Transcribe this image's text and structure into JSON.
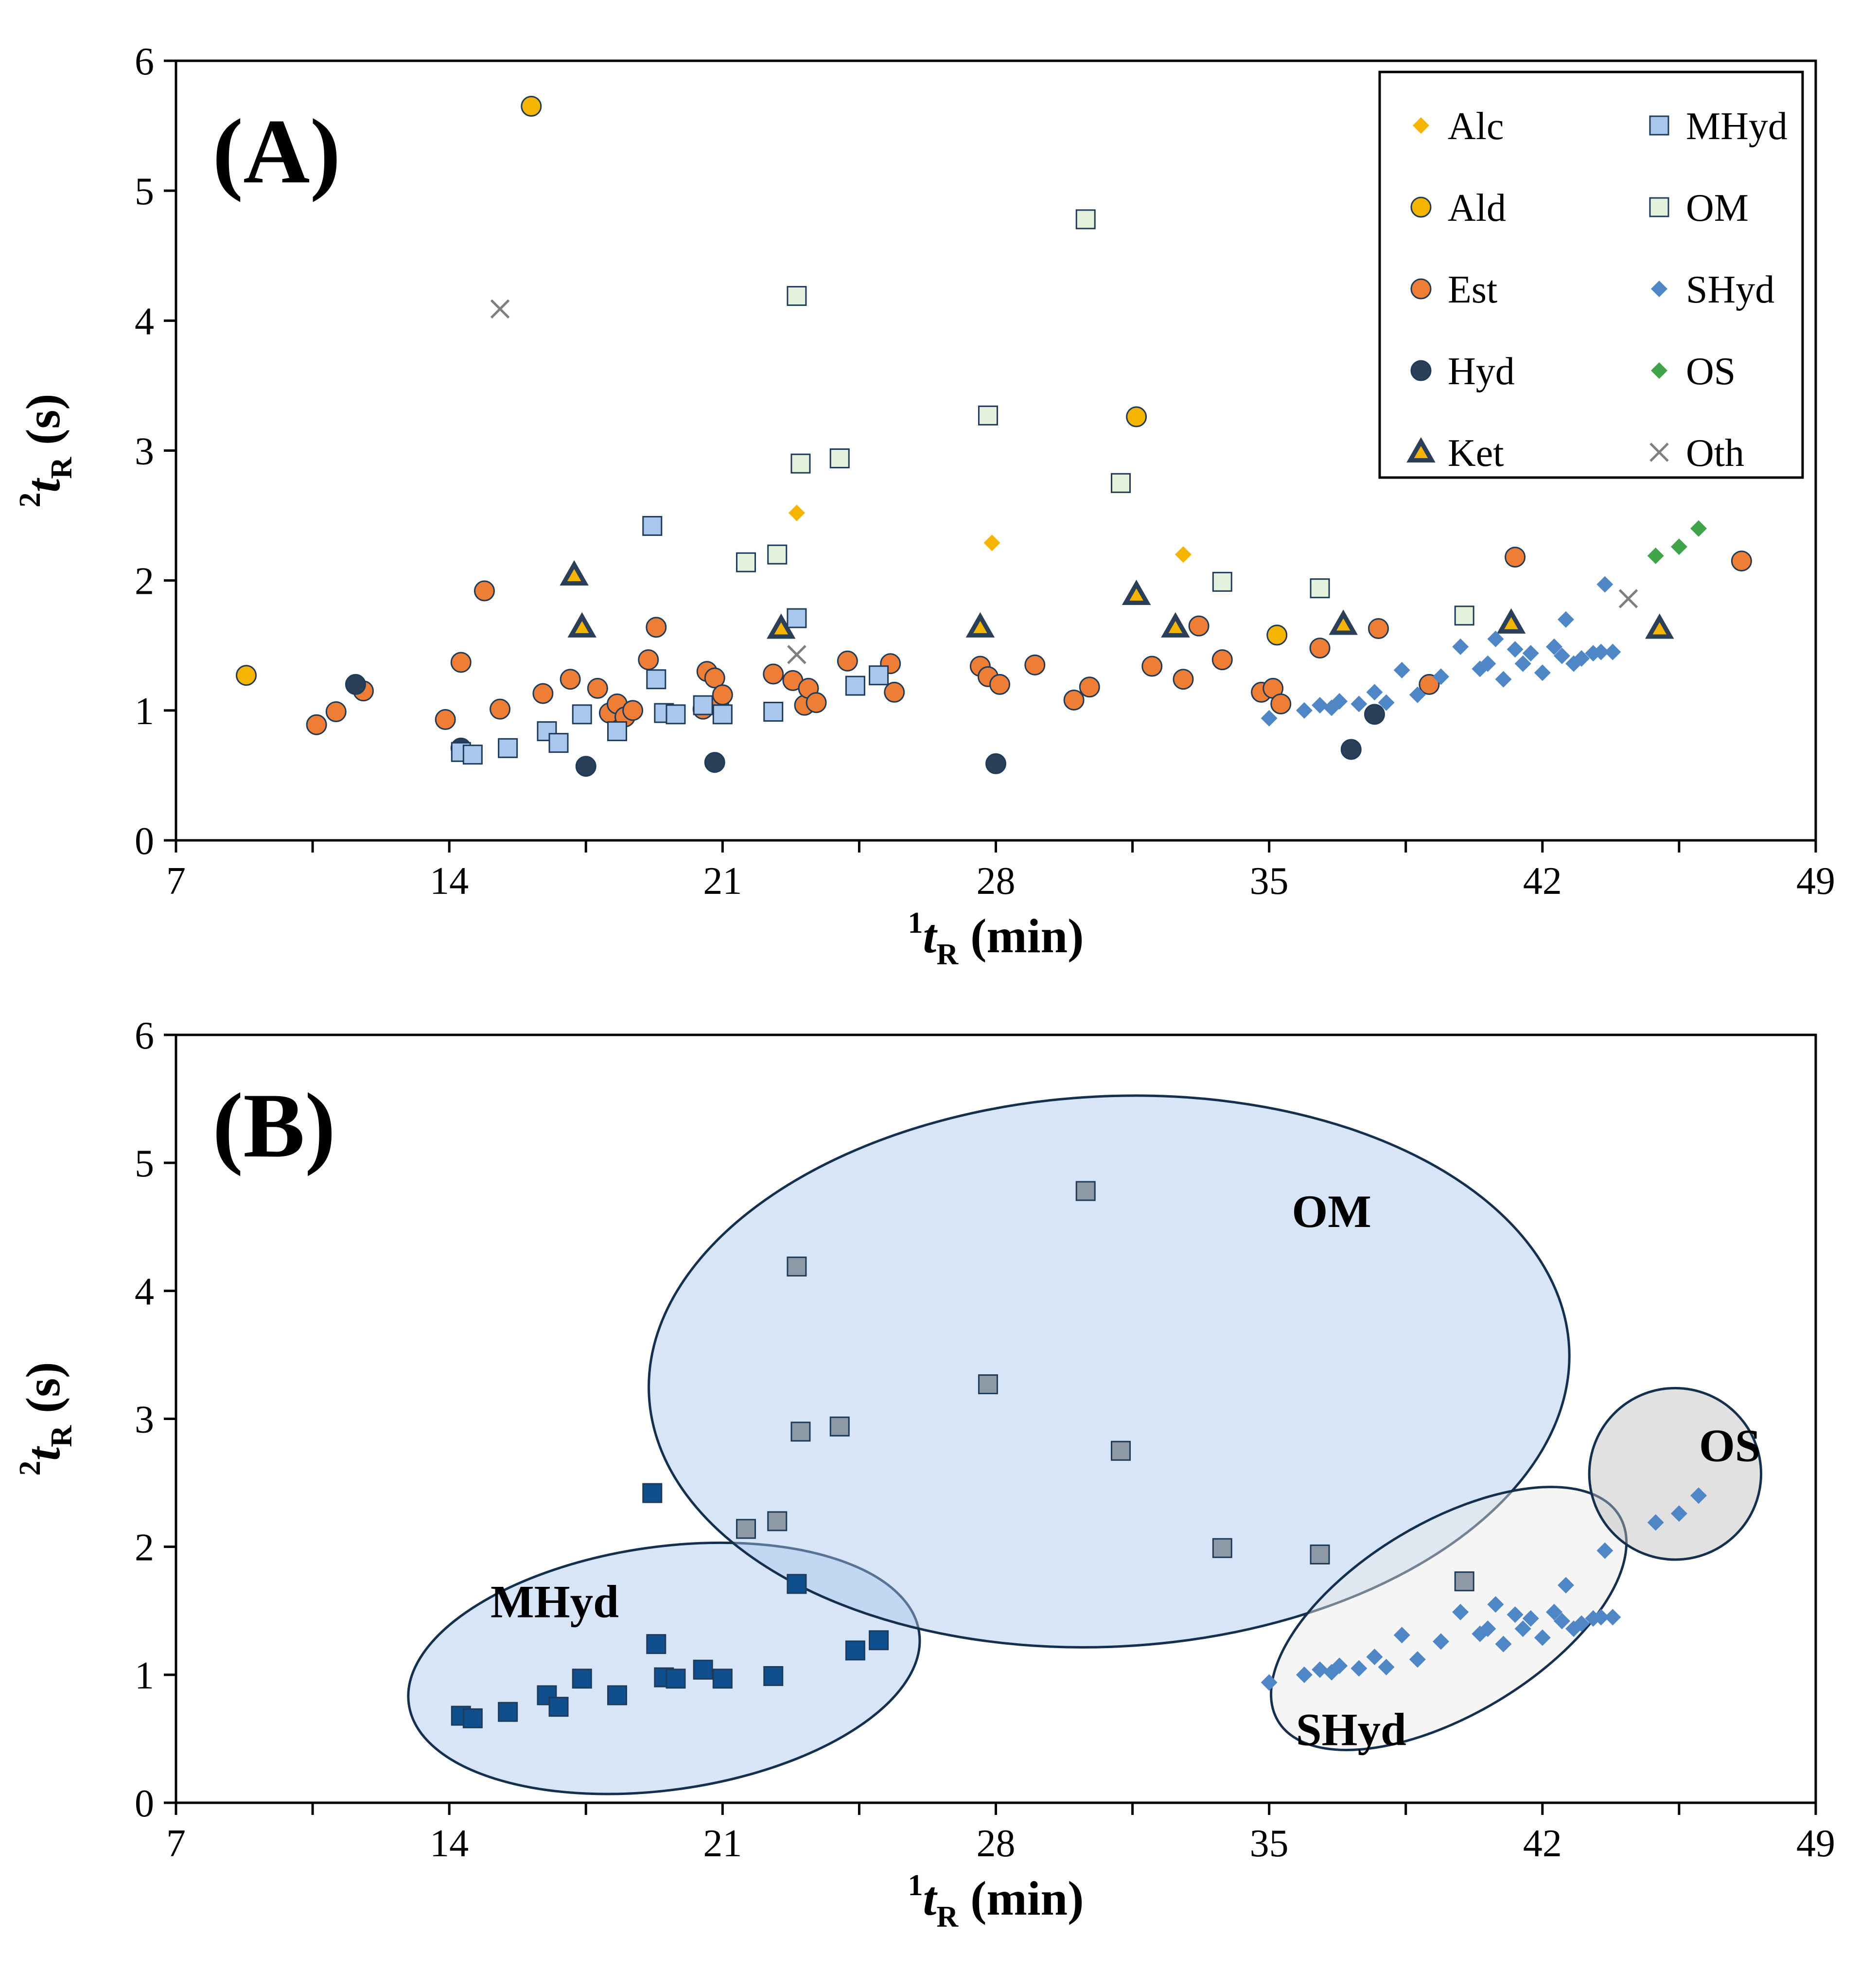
{
  "chart_data": [
    {
      "type": "scatter",
      "panel_label": "(A)",
      "xlabel_sup": "1",
      "xlabel_var": "t",
      "xlabel_sub": "R",
      "xlabel_unit": " (min)",
      "ylabel_sup": "2",
      "ylabel_var": "t",
      "ylabel_sub": "R",
      "ylabel_unit": " (s)",
      "xlim": [
        7,
        49
      ],
      "ylim": [
        0,
        6
      ],
      "xticks": [
        7,
        14,
        21,
        28,
        35,
        42,
        49
      ],
      "yticks": [
        0,
        1,
        2,
        3,
        4,
        5,
        6
      ],
      "grid": false,
      "legend": "top-right",
      "series": [
        {
          "name": "Alc",
          "marker": "diamond",
          "color": "#F5B400",
          "points": [
            [
              22.9,
              2.52
            ],
            [
              27.9,
              2.29
            ],
            [
              32.8,
              2.2
            ]
          ]
        },
        {
          "name": "Ald",
          "marker": "circle",
          "color": "#F5B400",
          "points": [
            [
              8.8,
              1.27
            ],
            [
              16.1,
              5.65
            ],
            [
              31.6,
              3.26
            ],
            [
              35.2,
              1.58
            ]
          ]
        },
        {
          "name": "Est",
          "marker": "circle",
          "color": "#EE7D35",
          "points": [
            [
              10.6,
              0.89
            ],
            [
              11.1,
              0.99
            ],
            [
              11.8,
              1.15
            ],
            [
              13.9,
              0.93
            ],
            [
              14.3,
              1.37
            ],
            [
              14.9,
              1.92
            ],
            [
              15.3,
              1.01
            ],
            [
              16.4,
              1.13
            ],
            [
              17.1,
              1.24
            ],
            [
              17.8,
              1.17
            ],
            [
              18.1,
              0.98
            ],
            [
              18.3,
              1.05
            ],
            [
              18.5,
              0.95
            ],
            [
              18.7,
              1.0
            ],
            [
              19.1,
              1.39
            ],
            [
              19.3,
              1.64
            ],
            [
              20.5,
              1.01
            ],
            [
              20.6,
              1.3
            ],
            [
              20.8,
              1.25
            ],
            [
              20.9,
              1.05
            ],
            [
              21.0,
              1.12
            ],
            [
              22.3,
              1.28
            ],
            [
              22.8,
              1.23
            ],
            [
              23.1,
              1.04
            ],
            [
              23.2,
              1.17
            ],
            [
              23.4,
              1.06
            ],
            [
              24.2,
              1.38
            ],
            [
              25.3,
              1.36
            ],
            [
              25.4,
              1.14
            ],
            [
              27.6,
              1.34
            ],
            [
              27.8,
              1.26
            ],
            [
              28.1,
              1.2
            ],
            [
              29.0,
              1.35
            ],
            [
              30.0,
              1.08
            ],
            [
              30.4,
              1.18
            ],
            [
              32.0,
              1.34
            ],
            [
              32.8,
              1.24
            ],
            [
              33.2,
              1.65
            ],
            [
              33.8,
              1.39
            ],
            [
              34.8,
              1.14
            ],
            [
              35.1,
              1.17
            ],
            [
              35.3,
              1.05
            ],
            [
              36.3,
              1.48
            ],
            [
              37.8,
              1.63
            ],
            [
              39.1,
              1.2
            ],
            [
              41.3,
              2.18
            ],
            [
              47.1,
              2.15
            ]
          ]
        },
        {
          "name": "Hyd",
          "marker": "circle",
          "color": "#2B3F58",
          "points": [
            [
              11.6,
              1.2
            ],
            [
              14.3,
              0.71
            ],
            [
              17.5,
              0.57
            ],
            [
              20.8,
              0.6
            ],
            [
              28.0,
              0.59
            ],
            [
              37.1,
              0.7
            ],
            [
              37.7,
              0.97
            ]
          ]
        },
        {
          "name": "Ket",
          "marker": "triangle",
          "color": "#F5B400",
          "points": [
            [
              17.2,
              2.04
            ],
            [
              17.4,
              1.64
            ],
            [
              22.5,
              1.63
            ],
            [
              27.6,
              1.64
            ],
            [
              31.6,
              1.89
            ],
            [
              32.6,
              1.64
            ],
            [
              36.9,
              1.66
            ],
            [
              41.2,
              1.67
            ],
            [
              45.0,
              1.63
            ]
          ]
        },
        {
          "name": "MHyd",
          "marker": "square",
          "color": "#A9C6EC",
          "points": [
            [
              14.3,
              0.68
            ],
            [
              14.6,
              0.66
            ],
            [
              15.5,
              0.71
            ],
            [
              16.5,
              0.84
            ],
            [
              16.8,
              0.75
            ],
            [
              17.4,
              0.97
            ],
            [
              18.3,
              0.84
            ],
            [
              19.2,
              2.42
            ],
            [
              19.3,
              1.24
            ],
            [
              19.5,
              0.98
            ],
            [
              19.8,
              0.97
            ],
            [
              20.5,
              1.04
            ],
            [
              21.0,
              0.97
            ],
            [
              22.3,
              0.99
            ],
            [
              22.9,
              1.71
            ],
            [
              24.4,
              1.19
            ],
            [
              25.0,
              1.27
            ]
          ]
        },
        {
          "name": "OM",
          "marker": "square",
          "color": "#E3F1DD",
          "points": [
            [
              21.6,
              2.14
            ],
            [
              22.4,
              2.2
            ],
            [
              22.9,
              4.19
            ],
            [
              23.0,
              2.9
            ],
            [
              24.0,
              2.94
            ],
            [
              27.8,
              3.27
            ],
            [
              30.3,
              4.78
            ],
            [
              31.2,
              2.75
            ],
            [
              33.8,
              1.99
            ],
            [
              36.3,
              1.94
            ],
            [
              40.0,
              1.73
            ]
          ]
        },
        {
          "name": "SHyd",
          "marker": "diamond",
          "color": "#4F86C6",
          "points": [
            [
              35.0,
              0.94
            ],
            [
              35.9,
              1.0
            ],
            [
              36.3,
              1.04
            ],
            [
              36.6,
              1.02
            ],
            [
              36.8,
              1.07
            ],
            [
              37.3,
              1.05
            ],
            [
              37.7,
              1.14
            ],
            [
              38.0,
              1.06
            ],
            [
              38.4,
              1.31
            ],
            [
              38.8,
              1.12
            ],
            [
              39.4,
              1.26
            ],
            [
              39.9,
              1.49
            ],
            [
              40.4,
              1.32
            ],
            [
              40.6,
              1.36
            ],
            [
              40.8,
              1.55
            ],
            [
              41.0,
              1.24
            ],
            [
              41.3,
              1.47
            ],
            [
              41.5,
              1.36
            ],
            [
              41.7,
              1.44
            ],
            [
              42.0,
              1.29
            ],
            [
              42.3,
              1.49
            ],
            [
              42.5,
              1.42
            ],
            [
              42.6,
              1.7
            ],
            [
              42.8,
              1.36
            ],
            [
              43.0,
              1.4
            ],
            [
              43.3,
              1.44
            ],
            [
              43.5,
              1.45
            ],
            [
              43.6,
              1.97
            ],
            [
              43.8,
              1.45
            ]
          ]
        },
        {
          "name": "OS",
          "marker": "diamond",
          "color": "#3FA44A",
          "points": [
            [
              44.9,
              2.19
            ],
            [
              45.5,
              2.26
            ],
            [
              46.0,
              2.4
            ]
          ]
        },
        {
          "name": "Oth",
          "marker": "x",
          "color": "#7F7F7F",
          "points": [
            [
              15.3,
              4.09
            ],
            [
              22.9,
              1.43
            ],
            [
              44.2,
              1.86
            ]
          ]
        }
      ]
    },
    {
      "type": "scatter",
      "panel_label": "(B)",
      "xlabel_sup": "1",
      "xlabel_var": "t",
      "xlabel_sub": "R",
      "xlabel_unit": " (min)",
      "ylabel_sup": "2",
      "ylabel_var": "t",
      "ylabel_sub": "R",
      "ylabel_unit": " (s)",
      "xlim": [
        7,
        49
      ],
      "ylim": [
        0,
        6
      ],
      "xticks": [
        7,
        14,
        21,
        28,
        35,
        42,
        49
      ],
      "yticks": [
        0,
        1,
        2,
        3,
        4,
        5,
        6
      ],
      "grid": false,
      "series": [
        {
          "name": "MHyd",
          "marker": "square",
          "color": "#0F4F8E",
          "points": [
            [
              14.3,
              0.68
            ],
            [
              14.6,
              0.66
            ],
            [
              15.5,
              0.71
            ],
            [
              16.5,
              0.84
            ],
            [
              16.8,
              0.75
            ],
            [
              17.4,
              0.97
            ],
            [
              18.3,
              0.84
            ],
            [
              19.2,
              2.42
            ],
            [
              19.3,
              1.24
            ],
            [
              19.5,
              0.98
            ],
            [
              19.8,
              0.97
            ],
            [
              20.5,
              1.04
            ],
            [
              21.0,
              0.97
            ],
            [
              22.3,
              0.99
            ],
            [
              22.9,
              1.71
            ],
            [
              24.4,
              1.19
            ],
            [
              25.0,
              1.27
            ]
          ]
        },
        {
          "name": "OM",
          "marker": "square",
          "color": "#8E99A8",
          "points": [
            [
              21.6,
              2.14
            ],
            [
              22.4,
              2.2
            ],
            [
              22.9,
              4.19
            ],
            [
              23.0,
              2.9
            ],
            [
              24.0,
              2.94
            ],
            [
              27.8,
              3.27
            ],
            [
              30.3,
              4.78
            ],
            [
              31.2,
              2.75
            ],
            [
              33.8,
              1.99
            ],
            [
              36.3,
              1.94
            ],
            [
              40.0,
              1.73
            ]
          ]
        },
        {
          "name": "SHyd",
          "marker": "diamond",
          "color": "#4F86C6",
          "points": [
            [
              35.0,
              0.94
            ],
            [
              35.9,
              1.0
            ],
            [
              36.3,
              1.04
            ],
            [
              36.6,
              1.02
            ],
            [
              36.8,
              1.07
            ],
            [
              37.3,
              1.05
            ],
            [
              37.7,
              1.14
            ],
            [
              38.0,
              1.06
            ],
            [
              38.4,
              1.31
            ],
            [
              38.8,
              1.12
            ],
            [
              39.4,
              1.26
            ],
            [
              39.9,
              1.49
            ],
            [
              40.4,
              1.32
            ],
            [
              40.6,
              1.36
            ],
            [
              40.8,
              1.55
            ],
            [
              41.0,
              1.24
            ],
            [
              41.3,
              1.47
            ],
            [
              41.5,
              1.36
            ],
            [
              41.7,
              1.44
            ],
            [
              42.0,
              1.29
            ],
            [
              42.3,
              1.49
            ],
            [
              42.5,
              1.42
            ],
            [
              42.6,
              1.7
            ],
            [
              42.8,
              1.36
            ],
            [
              43.0,
              1.4
            ],
            [
              43.3,
              1.44
            ],
            [
              43.5,
              1.45
            ],
            [
              43.6,
              1.97
            ],
            [
              43.8,
              1.45
            ]
          ]
        },
        {
          "name": "OS",
          "marker": "diamond",
          "color": "#4F86C6",
          "points": [
            [
              44.9,
              2.19
            ],
            [
              45.5,
              2.26
            ],
            [
              46.0,
              2.4
            ]
          ]
        }
      ],
      "groups": [
        {
          "label": "MHyd",
          "fill": "#A9C6EC",
          "opacity": 0.45,
          "center": [
            19.5,
            1.05
          ],
          "radii": [
            6.6,
            0.95
          ],
          "angle_deg": 8,
          "label_at": [
            16.7,
            1.45
          ]
        },
        {
          "label": "OM",
          "fill": "#A9C6EC",
          "opacity": 0.45,
          "center": [
            30.9,
            3.37
          ],
          "radii": [
            11.8,
            2.15
          ],
          "angle_deg": 3,
          "label_at": [
            36.6,
            4.5
          ]
        },
        {
          "label": "SHyd",
          "fill": "#E8E8E8",
          "opacity": 0.45,
          "center": [
            39.6,
            1.44
          ],
          "radii": [
            5.1,
            0.75
          ],
          "angle_deg": 31,
          "label_at": [
            37.1,
            0.45
          ]
        },
        {
          "label": "OS",
          "fill": "#BDBDBD",
          "opacity": 0.45,
          "center": [
            45.4,
            2.57
          ],
          "radii": [
            2.2,
            0.67
          ],
          "angle_deg": 0,
          "label_at": [
            46.8,
            2.67
          ]
        }
      ]
    }
  ]
}
